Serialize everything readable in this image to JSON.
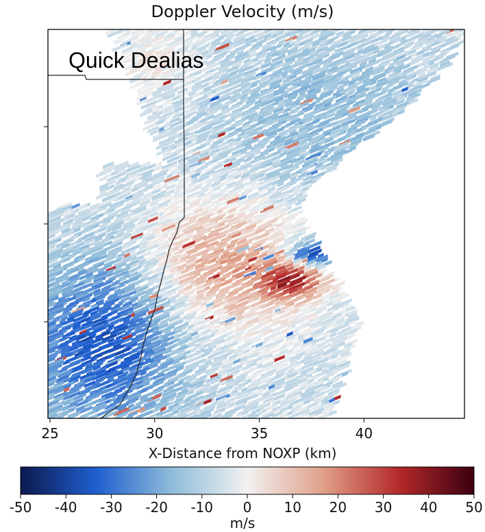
{
  "chart_data": {
    "type": "heatmap",
    "title": "Doppler Velocity (m/s)",
    "annotation": "Quick Dealias",
    "xlabel": "X-Distance from NOXP (km)",
    "xlim": [
      24.9,
      44.8
    ],
    "xticks": [
      25,
      30,
      35,
      40
    ],
    "yticks_labeled": false,
    "colorbar": {
      "label": "m/s",
      "range": [
        -50,
        50
      ],
      "ticks": [
        -50,
        -40,
        -30,
        -20,
        -10,
        0,
        10,
        20,
        30,
        40,
        50
      ],
      "colormap": [
        "#0c1a4e",
        "#1f5fd0",
        "#8fbcd9",
        "#f1f1f1",
        "#e0a088",
        "#b52a2a",
        "#3c0010"
      ]
    },
    "features": [
      {
        "region": "left wedge (x 25-31 km, upper-middle)",
        "velocity_approx": 5
      },
      {
        "region": "upper-right band",
        "velocity_approx": -10
      },
      {
        "region": "central core near x 36-37 km",
        "velocity_approx": 40
      },
      {
        "region": "couplet inbound side near x 37 km",
        "velocity_approx": -35
      },
      {
        "region": "lower-left sector",
        "velocity_approx": -25
      }
    ]
  }
}
